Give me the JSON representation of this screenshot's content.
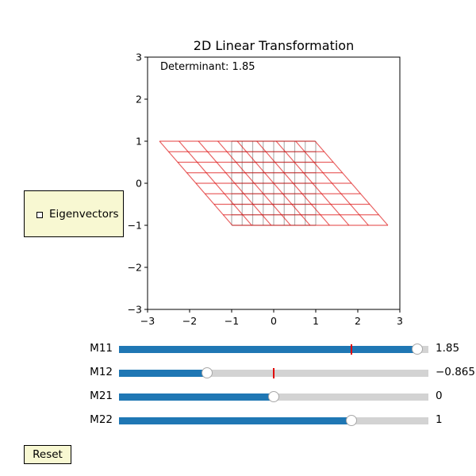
{
  "plot": {
    "title": "2D Linear Transformation",
    "determinant_text": "Determinant: 1.85",
    "x_ticks": [
      "−3",
      "−2",
      "−1",
      "0",
      "1",
      "2",
      "3"
    ],
    "y_ticks": [
      "3",
      "2",
      "1",
      "0",
      "−1",
      "−2",
      "−3"
    ],
    "grid_color": "#dd1111",
    "original_grid_color": "#222222"
  },
  "chart_data": {
    "type": "line",
    "title": "2D Linear Transformation",
    "xlim": [
      -3,
      3
    ],
    "ylim": [
      -3,
      3
    ],
    "grid_range": [
      -1,
      1
    ],
    "grid_lines_per_axis": 9,
    "matrix": [
      [
        1.85,
        -0.865
      ],
      [
        0,
        1
      ]
    ],
    "determinant": 1.85
  },
  "eigen_panel": {
    "label": "Eigenvectors",
    "checked": false
  },
  "sliders": [
    {
      "label": "M11",
      "value": 1.85,
      "value_text": "1.85",
      "fill_fraction": 0.963,
      "initial_fraction": 0.75
    },
    {
      "label": "M12",
      "value": -0.865,
      "value_text": "−0.865",
      "fill_fraction": 0.285,
      "initial_fraction": 0.5
    },
    {
      "label": "M21",
      "value": 0,
      "value_text": "0",
      "fill_fraction": 0.5,
      "initial_fraction": null
    },
    {
      "label": "M22",
      "value": 1,
      "value_text": "1",
      "fill_fraction": 0.75,
      "initial_fraction": null
    }
  ],
  "reset": {
    "label": "Reset"
  },
  "colors": {
    "slider_fill": "#1f77b4",
    "slider_track": "#d3d3d3",
    "widget_bg": "#f8f8d2",
    "init_marker": "#e00000"
  }
}
